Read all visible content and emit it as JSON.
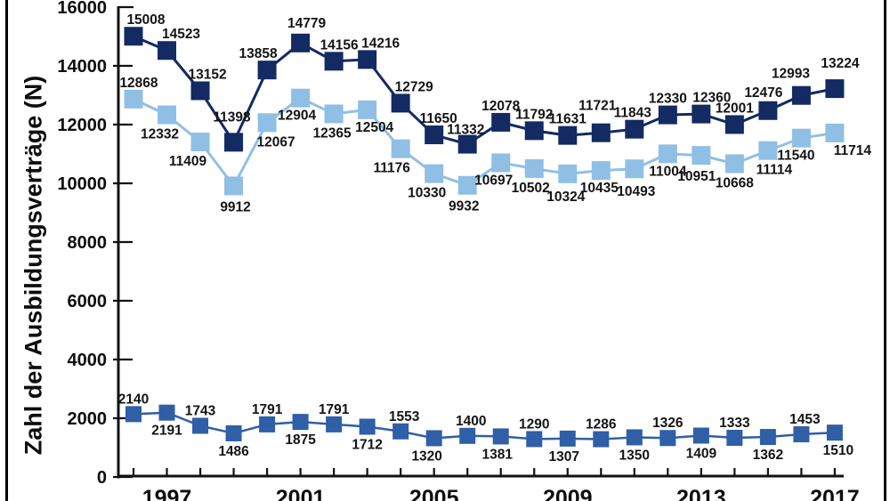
{
  "figure": {
    "background": "#ffffff",
    "frame_border_color": "#000000"
  },
  "chart_data": {
    "type": "line",
    "title": "",
    "ylabel": "Zahl der Ausbildungsverträge (N)",
    "xlabel": "",
    "grid": false,
    "marker": "square",
    "axis_color": "#111111",
    "data_label_color": "#141414",
    "ylim": [
      0,
      16000
    ],
    "y_ticks": [
      0,
      2000,
      4000,
      6000,
      8000,
      10000,
      12000,
      14000,
      16000
    ],
    "x": [
      1996,
      1997,
      1998,
      1999,
      2000,
      2001,
      2002,
      2003,
      2004,
      2005,
      2006,
      2007,
      2008,
      2009,
      2010,
      2011,
      2012,
      2013,
      2014,
      2015,
      2016,
      2017
    ],
    "x_tick_years_labeled": [
      1997,
      2001,
      2005,
      2009,
      2013,
      2017
    ],
    "series": [
      {
        "name": "light-blue",
        "color": "#90bfe5",
        "line_width": 3,
        "marker_size": 21,
        "values": [
          12868,
          12332,
          11409,
          9912,
          12067,
          12904,
          12365,
          12504,
          11176,
          10330,
          9932,
          10697,
          10502,
          10324,
          10435,
          10493,
          11004,
          10951,
          10668,
          11114,
          11540,
          11714
        ],
        "label_side": [
          "above",
          "below",
          "below",
          "below",
          "below",
          "below",
          "below",
          "below",
          "below",
          "below",
          "below",
          "below",
          "below",
          "below",
          "below",
          "below",
          "below",
          "below",
          "below",
          "below",
          "below",
          "below"
        ],
        "label_dx": [
          6,
          -8,
          -14,
          2,
          10,
          -4,
          -2,
          8,
          -10,
          -8,
          -4,
          -8,
          -4,
          -2,
          -2,
          2,
          0,
          -5,
          0,
          7,
          -6,
          20
        ],
        "label_dy": [
          0,
          0,
          0,
          2,
          0,
          -2,
          0,
          -2,
          0,
          0,
          2,
          -2,
          0,
          4,
          -2,
          4,
          -2,
          2,
          0,
          0,
          -2,
          -2
        ]
      },
      {
        "name": "dark-blue",
        "color": "#132a63",
        "line_width": 3,
        "marker_size": 21,
        "values": [
          15008,
          14523,
          13152,
          11398,
          13858,
          14779,
          14156,
          14216,
          12729,
          11650,
          11332,
          12078,
          11792,
          11631,
          11721,
          11843,
          12330,
          12360,
          12001,
          12476,
          12993,
          13224
        ],
        "label_side": [
          "above",
          "above",
          "above",
          "above",
          "above",
          "above",
          "above",
          "above",
          "above",
          "above",
          "above",
          "above",
          "above",
          "above",
          "above",
          "above",
          "above",
          "above",
          "above",
          "above",
          "above",
          "above"
        ],
        "label_dx": [
          14,
          16,
          8,
          -2,
          -10,
          7,
          6,
          15,
          15,
          5,
          -2,
          0,
          0,
          0,
          -4,
          -2,
          0,
          12,
          0,
          -5,
          -12,
          6
        ],
        "label_dy": [
          0,
          0,
          0,
          -10,
          0,
          -4,
          0,
          0,
          0,
          0,
          2,
          0,
          0,
          0,
          -12,
          0,
          0,
          0,
          0,
          -2,
          -6,
          -10
        ]
      },
      {
        "name": "medium-blue",
        "color": "#2e5fa7",
        "line_width": 2.5,
        "marker_size": 18,
        "values": [
          2140,
          2191,
          1743,
          1486,
          1791,
          1875,
          1791,
          1712,
          1553,
          1320,
          1400,
          1381,
          1290,
          1307,
          1286,
          1350,
          1326,
          1409,
          1333,
          1362,
          1453,
          1510
        ],
        "label_side": [
          "above",
          "below",
          "above",
          "below",
          "above",
          "below",
          "above",
          "below",
          "above",
          "below",
          "above",
          "below",
          "above",
          "below",
          "above",
          "below",
          "above",
          "below",
          "above",
          "below",
          "above",
          "below"
        ],
        "label_dx": [
          0,
          0,
          0,
          0,
          0,
          0,
          0,
          0,
          4,
          -8,
          4,
          -4,
          0,
          -4,
          0,
          0,
          0,
          0,
          0,
          0,
          4,
          4
        ],
        "label_dy": [
          0,
          0,
          0,
          0,
          0,
          0,
          0,
          0,
          0,
          0,
          0,
          0,
          0,
          0,
          0,
          0,
          0,
          0,
          0,
          0,
          0,
          0
        ]
      }
    ]
  }
}
